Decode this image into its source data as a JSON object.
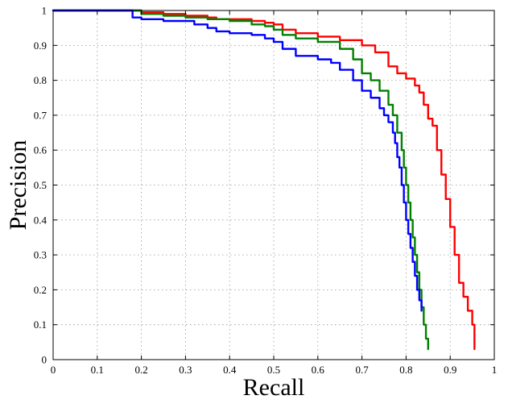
{
  "chart_data": {
    "type": "line",
    "title": "",
    "xlabel": "Recall",
    "ylabel": "Precision",
    "xlim": [
      0,
      1
    ],
    "ylim": [
      0,
      1
    ],
    "grid": true,
    "legend": "none",
    "xticks": [
      "0",
      "0.1",
      "0.2",
      "0.3",
      "0.4",
      "0.5",
      "0.6",
      "0.7",
      "0.8",
      "0.9",
      "1"
    ],
    "yticks": [
      "0",
      "0.1",
      "0.2",
      "0.3",
      "0.4",
      "0.5",
      "0.6",
      "0.7",
      "0.8",
      "0.9",
      "1"
    ],
    "series": [
      {
        "color": "#ff0000",
        "x": [
          0,
          0.17,
          0.2,
          0.25,
          0.3,
          0.35,
          0.37,
          0.4,
          0.45,
          0.48,
          0.5,
          0.52,
          0.55,
          0.6,
          0.65,
          0.7,
          0.73,
          0.76,
          0.78,
          0.8,
          0.82,
          0.83,
          0.84,
          0.85,
          0.86,
          0.87,
          0.88,
          0.89,
          0.9,
          0.91,
          0.92,
          0.93,
          0.94,
          0.95,
          0.955
        ],
        "y": [
          1,
          1,
          0.995,
          0.99,
          0.985,
          0.98,
          0.975,
          0.975,
          0.97,
          0.965,
          0.96,
          0.945,
          0.935,
          0.925,
          0.915,
          0.9,
          0.88,
          0.84,
          0.82,
          0.805,
          0.785,
          0.765,
          0.73,
          0.69,
          0.67,
          0.6,
          0.53,
          0.46,
          0.38,
          0.3,
          0.22,
          0.18,
          0.14,
          0.1,
          0.03
        ]
      },
      {
        "color": "#008000",
        "x": [
          0,
          0.17,
          0.2,
          0.25,
          0.3,
          0.35,
          0.4,
          0.45,
          0.48,
          0.5,
          0.52,
          0.55,
          0.6,
          0.65,
          0.68,
          0.7,
          0.72,
          0.74,
          0.76,
          0.77,
          0.78,
          0.79,
          0.795,
          0.8,
          0.805,
          0.81,
          0.815,
          0.82,
          0.825,
          0.83,
          0.835,
          0.84,
          0.845,
          0.85
        ],
        "y": [
          1,
          1,
          0.99,
          0.985,
          0.98,
          0.975,
          0.97,
          0.96,
          0.955,
          0.945,
          0.93,
          0.92,
          0.91,
          0.89,
          0.86,
          0.82,
          0.8,
          0.77,
          0.73,
          0.7,
          0.65,
          0.6,
          0.55,
          0.5,
          0.45,
          0.4,
          0.35,
          0.3,
          0.25,
          0.2,
          0.15,
          0.1,
          0.06,
          0.03
        ]
      },
      {
        "color": "#0000ff",
        "x": [
          0,
          0.17,
          0.18,
          0.2,
          0.25,
          0.3,
          0.32,
          0.35,
          0.37,
          0.4,
          0.45,
          0.48,
          0.5,
          0.52,
          0.55,
          0.6,
          0.63,
          0.65,
          0.68,
          0.7,
          0.72,
          0.74,
          0.75,
          0.76,
          0.77,
          0.775,
          0.78,
          0.785,
          0.79,
          0.795,
          0.8,
          0.805,
          0.81,
          0.815,
          0.82,
          0.825,
          0.83,
          0.835
        ],
        "y": [
          1,
          1,
          0.98,
          0.975,
          0.97,
          0.97,
          0.96,
          0.95,
          0.94,
          0.935,
          0.93,
          0.92,
          0.91,
          0.89,
          0.87,
          0.86,
          0.85,
          0.83,
          0.8,
          0.77,
          0.75,
          0.72,
          0.7,
          0.68,
          0.65,
          0.62,
          0.58,
          0.55,
          0.5,
          0.45,
          0.4,
          0.36,
          0.32,
          0.28,
          0.24,
          0.2,
          0.17,
          0.14
        ]
      }
    ]
  }
}
